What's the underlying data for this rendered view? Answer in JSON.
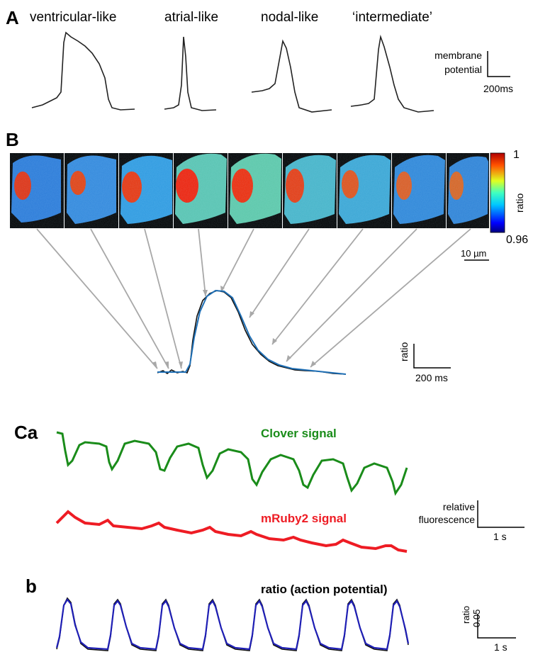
{
  "panel_a": {
    "letter": "A",
    "types": [
      {
        "label": "ventricular-like"
      },
      {
        "label": "atrial-like"
      },
      {
        "label": "nodal-like"
      },
      {
        "label": "‘intermediate’"
      }
    ],
    "scale": {
      "y_label_1": "membrane",
      "y_label_2": "potential",
      "x_label": "200ms"
    }
  },
  "panel_b": {
    "letter": "B",
    "colorbar": {
      "max": "1",
      "min": "0.96",
      "label": "ratio"
    },
    "image_scale": "10 µm",
    "trace_scale": {
      "y_label": "ratio",
      "x_label": "200 ms"
    },
    "trace_color": "#1f6fb5",
    "frame_count": 9
  },
  "panel_c": {
    "letter_a": "Ca",
    "letter_b": "b",
    "clover_label": "Clover signal",
    "clover_color": "#1a8c1a",
    "mruby_label": "mRuby2 signal",
    "mruby_color": "#ee1c24",
    "fluor_scale": {
      "y_label_1": "relative",
      "y_label_2": "fluorescence",
      "x_label": "1 s"
    },
    "ratio_label": "ratio (action potential)",
    "ratio_color": "#1f1fb5",
    "ratio_scale": {
      "y_label": "ratio",
      "y_value": "0.05",
      "x_label": "1 s"
    },
    "beat_count": 8
  }
}
